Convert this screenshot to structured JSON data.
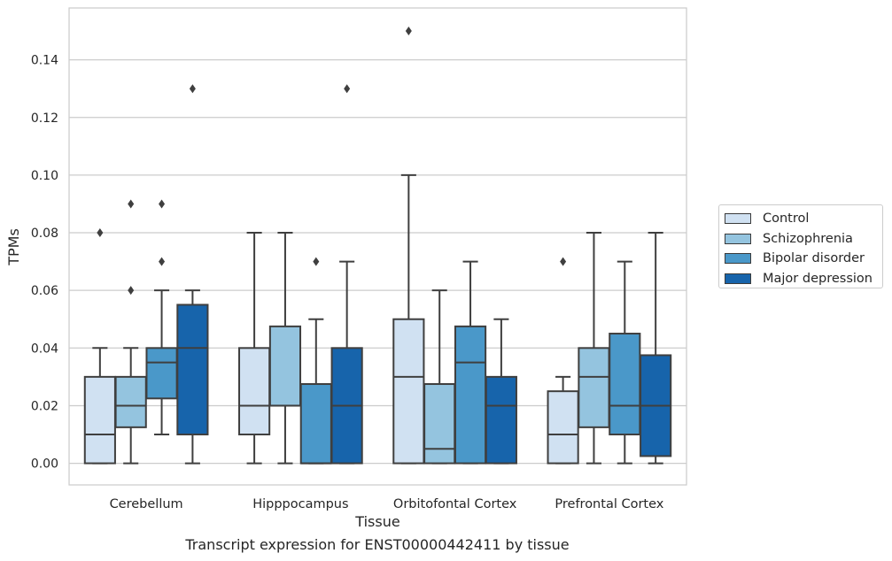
{
  "chart_data": {
    "type": "box",
    "caption": "Transcript expression for ENST00000442411 by tissue",
    "xlabel": "Tissue",
    "ylabel": "TPMs",
    "ylim": [
      -0.0075,
      0.158
    ],
    "yticks": [
      0.0,
      0.02,
      0.04,
      0.06,
      0.08,
      0.1,
      0.12,
      0.14
    ],
    "ytick_labels": [
      "0.00",
      "0.02",
      "0.04",
      "0.06",
      "0.08",
      "0.10",
      "0.12",
      "0.14"
    ],
    "grid": "horizontal",
    "legend_position": "right",
    "categories": [
      "Cerebellum",
      "Hipppocampus",
      "Orbitofontal Cortex",
      "Prefrontal Cortex"
    ],
    "series": [
      {
        "name": "Control",
        "color": "#d0e1f2",
        "boxes": [
          {
            "whislo": 0.0,
            "q1": 0.0,
            "med": 0.01,
            "q3": 0.03,
            "whishi": 0.04,
            "fliers": [
              0.08
            ]
          },
          {
            "whislo": 0.0,
            "q1": 0.01,
            "med": 0.02,
            "q3": 0.04,
            "whishi": 0.08,
            "fliers": []
          },
          {
            "whislo": 0.0,
            "q1": 0.0,
            "med": 0.03,
            "q3": 0.05,
            "whishi": 0.1,
            "fliers": [
              0.15
            ]
          },
          {
            "whislo": 0.0,
            "q1": 0.0,
            "med": 0.01,
            "q3": 0.025,
            "whishi": 0.03,
            "fliers": [
              0.07
            ]
          }
        ]
      },
      {
        "name": "Schizophrenia",
        "color": "#94c4df",
        "boxes": [
          {
            "whislo": 0.0,
            "q1": 0.0125,
            "med": 0.02,
            "q3": 0.03,
            "whishi": 0.04,
            "fliers": [
              0.06,
              0.09
            ]
          },
          {
            "whislo": 0.0,
            "q1": 0.02,
            "med": 0.02,
            "q3": 0.0475,
            "whishi": 0.08,
            "fliers": []
          },
          {
            "whislo": 0.0,
            "q1": 0.0,
            "med": 0.005,
            "q3": 0.0275,
            "whishi": 0.06,
            "fliers": []
          },
          {
            "whislo": 0.0,
            "q1": 0.0125,
            "med": 0.03,
            "q3": 0.04,
            "whishi": 0.08,
            "fliers": []
          }
        ]
      },
      {
        "name": "Bipolar disorder",
        "color": "#4a98c9",
        "boxes": [
          {
            "whislo": 0.01,
            "q1": 0.0225,
            "med": 0.035,
            "q3": 0.04,
            "whishi": 0.06,
            "fliers": [
              0.07,
              0.09
            ]
          },
          {
            "whislo": 0.0,
            "q1": 0.0,
            "med": 0.0,
            "q3": 0.0275,
            "whishi": 0.05,
            "fliers": [
              0.07
            ]
          },
          {
            "whislo": 0.0,
            "q1": 0.0,
            "med": 0.035,
            "q3": 0.0475,
            "whishi": 0.07,
            "fliers": []
          },
          {
            "whislo": 0.0,
            "q1": 0.01,
            "med": 0.02,
            "q3": 0.045,
            "whishi": 0.07,
            "fliers": []
          }
        ]
      },
      {
        "name": "Major depression",
        "color": "#1764ab",
        "boxes": [
          {
            "whislo": 0.0,
            "q1": 0.01,
            "med": 0.04,
            "q3": 0.055,
            "whishi": 0.06,
            "fliers": [
              0.13
            ]
          },
          {
            "whislo": 0.0,
            "q1": 0.0,
            "med": 0.02,
            "q3": 0.04,
            "whishi": 0.07,
            "fliers": [
              0.13
            ]
          },
          {
            "whislo": 0.0,
            "q1": 0.0,
            "med": 0.02,
            "q3": 0.03,
            "whishi": 0.05,
            "fliers": []
          },
          {
            "whislo": 0.0,
            "q1": 0.0025,
            "med": 0.02,
            "q3": 0.0375,
            "whishi": 0.08,
            "fliers": []
          }
        ]
      }
    ]
  }
}
